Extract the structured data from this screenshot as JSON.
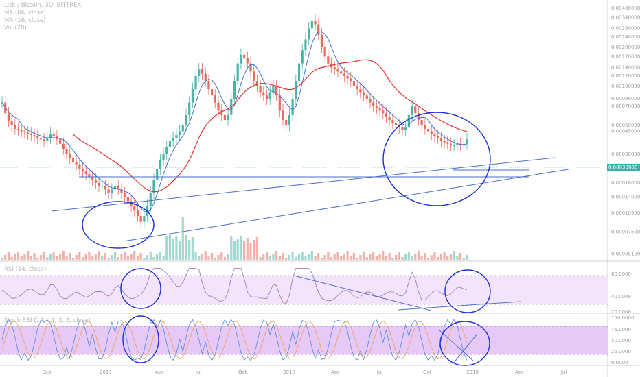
{
  "chart_data": {
    "type": "candlestick",
    "title": "Lisk / Bitcoin, 3D, BITTREX",
    "legend": [
      "MA (66, close)",
      "MA (16, close)",
      "Vol (20)"
    ],
    "last_price": "0.00038888",
    "price_axis_ticks": [
      "0.00400000",
      "0.00340000",
      "0.00280000",
      "0.00240000",
      "0.00200000",
      "0.00170000",
      "0.00140000",
      "0.00120000",
      "0.00100000",
      "0.00080000",
      "0.00070000",
      "0.00050000",
      "0.00045000",
      "0.00030000",
      "0.00023000",
      "0.00018000",
      "0.00014000",
      "0.00010500",
      "0.00007500",
      "0.00005100"
    ],
    "x_axis_ticks": [
      "Sep",
      "2017",
      "Apr",
      "Jul",
      "Oct",
      "2018",
      "Apr",
      "Jul",
      "Oct",
      "2019",
      "Apr",
      "Jul"
    ],
    "series_close": [
      0.00075,
      0.00062,
      0.00054,
      0.0005,
      0.00047,
      0.00046,
      0.00045,
      0.00044,
      0.00043,
      0.00042,
      0.00041,
      0.0004,
      0.00039,
      0.00038,
      0.0004,
      0.00043,
      0.00041,
      0.00039,
      0.00036,
      0.00033,
      0.0003,
      0.00028,
      0.00026,
      0.00025,
      0.00023,
      0.00022,
      0.00021,
      0.0002,
      0.00019,
      0.00018,
      0.00017,
      0.00017,
      0.00016,
      0.00015,
      0.00016,
      0.00017,
      0.00016,
      0.00015,
      0.00014,
      0.00013,
      0.00012,
      0.00011,
      0.0001,
      9e-05,
      0.0001,
      0.00012,
      0.00015,
      0.00019,
      0.00023,
      0.00027,
      0.0003,
      0.00034,
      0.00038,
      0.0004,
      0.00042,
      0.00045,
      0.0005,
      0.0006,
      0.00075,
      0.00095,
      0.0012,
      0.00135,
      0.00125,
      0.0011,
      0.00095,
      0.00085,
      0.00075,
      0.00065,
      0.0006,
      0.00055,
      0.0006,
      0.0008,
      0.0011,
      0.0015,
      0.00175,
      0.00165,
      0.0015,
      0.0013,
      0.0011,
      0.001,
      0.0009,
      0.00085,
      0.0008,
      0.0009,
      0.001,
      0.00085,
      0.00065,
      0.00055,
      0.0005,
      0.0006,
      0.0008,
      0.0011,
      0.0015,
      0.0019,
      0.0023,
      0.0028,
      0.0032,
      0.003,
      0.0025,
      0.002,
      0.0017,
      0.0015,
      0.0014,
      0.00135,
      0.0013,
      0.00125,
      0.0012,
      0.00115,
      0.0011,
      0.001,
      0.00095,
      0.0009,
      0.00085,
      0.0008,
      0.00075,
      0.0007,
      0.00068,
      0.00065,
      0.00062,
      0.00058,
      0.00055,
      0.00052,
      0.0005,
      0.00048,
      0.00046,
      0.00048,
      0.0006,
      0.0007,
      0.00062,
      0.00055,
      0.0005,
      0.00047,
      0.00045,
      0.00043,
      0.00041,
      0.0004,
      0.00038,
      0.00037,
      0.00036,
      0.00035,
      0.00035,
      0.00036,
      0.00035,
      0.00036,
      0.00039
    ],
    "rsi": {
      "label": "RSI (14, close)",
      "ticks": [
        "80.0000",
        "40.0000",
        "20.0000"
      ]
    },
    "stoch": {
      "label": "Stoch RSI (14, 14, 3, 3, close)",
      "ticks": [
        "100.0000",
        "75.0000",
        "50.0000",
        "25.0000",
        "0.0000"
      ]
    }
  }
}
